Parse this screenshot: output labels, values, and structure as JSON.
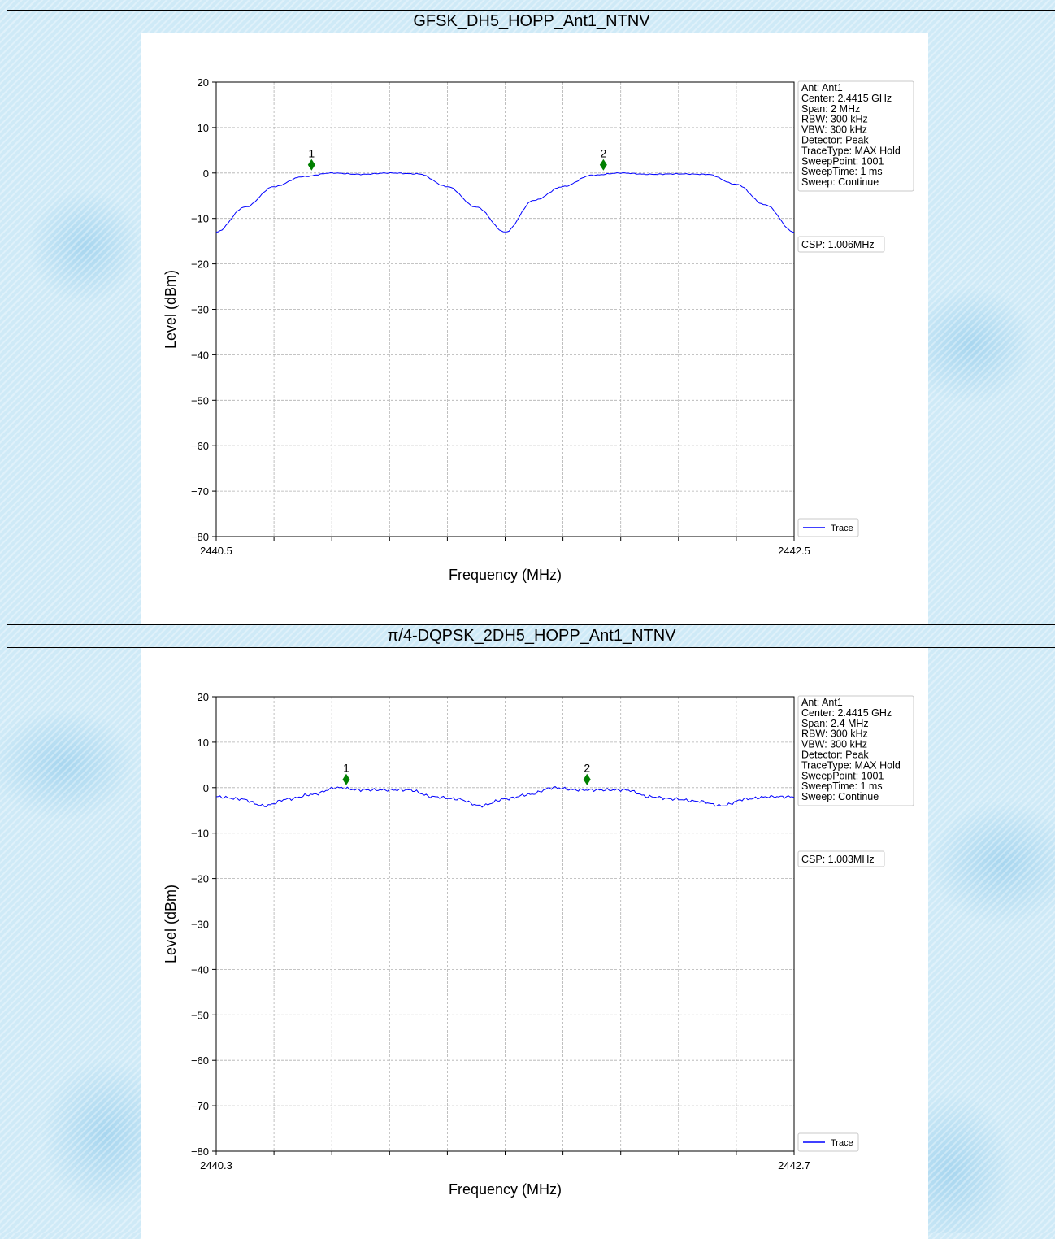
{
  "chart_data": [
    {
      "type": "line",
      "title": "GFSK_DH5_HOPP_Ant1_NTNV",
      "xlabel": "Frequency (MHz)",
      "ylabel": "Level (dBm)",
      "xlim": [
        2440.5,
        2442.5
      ],
      "ylim": [
        -80,
        20
      ],
      "x_tick_labels": [
        "2440.5",
        "2442.5"
      ],
      "y_ticks": [
        "20",
        "10",
        "0",
        "−10",
        "−20",
        "−30",
        "−40",
        "−50",
        "−60",
        "−70",
        "−80"
      ],
      "grid": true,
      "series": [
        {
          "name": "Trace",
          "x": [
            2440.5,
            2440.6,
            2440.7,
            2440.8,
            2440.9,
            2441.0,
            2441.1,
            2441.2,
            2441.3,
            2441.4,
            2441.5,
            2441.6,
            2441.7,
            2441.8,
            2441.9,
            2442.0,
            2442.1,
            2442.2,
            2442.3,
            2442.4,
            2442.5
          ],
          "values": [
            -13,
            -7.5,
            -3,
            -0.8,
            0,
            -0.3,
            0,
            -0.2,
            -3,
            -7.5,
            -13,
            -6,
            -3,
            -0.5,
            0,
            -0.3,
            -0.2,
            -0.3,
            -2.5,
            -7,
            -13
          ]
        }
      ],
      "markers": [
        {
          "label": "1",
          "x": 2440.83,
          "y": 1.8
        },
        {
          "label": "2",
          "x": 2441.84,
          "y": 1.8
        }
      ],
      "info_lines": [
        "Ant: Ant1",
        "Center: 2.4415 GHz",
        "Span: 2 MHz",
        "RBW: 300 kHz",
        "VBW: 300 kHz",
        "Detector: Peak",
        "TraceType: MAX Hold",
        "SweepPoint: 1001",
        "SweepTime: 1 ms",
        "Sweep: Continue"
      ],
      "csp_label": "CSP: 1.006MHz",
      "legend_label": "Trace",
      "legend_position": "bottom-right, outside plot",
      "trace_color": "#0000ff",
      "marker_color": "#008000"
    },
    {
      "type": "line",
      "title": "π/4-DQPSK_2DH5_HOPP_Ant1_NTNV",
      "xlabel": "Frequency (MHz)",
      "ylabel": "Level (dBm)",
      "xlim": [
        2440.3,
        2442.7
      ],
      "ylim": [
        -80,
        20
      ],
      "x_tick_labels": [
        "2440.3",
        "2442.7"
      ],
      "y_ticks": [
        "20",
        "10",
        "0",
        "−10",
        "−20",
        "−30",
        "−40",
        "−50",
        "−60",
        "−70",
        "−80"
      ],
      "grid": true,
      "series": [
        {
          "name": "Trace",
          "x": [
            2440.3,
            2440.4,
            2440.5,
            2440.6,
            2440.7,
            2440.8,
            2440.9,
            2441.0,
            2441.1,
            2441.2,
            2441.3,
            2441.4,
            2441.5,
            2441.6,
            2441.7,
            2441.8,
            2441.9,
            2442.0,
            2442.1,
            2442.2,
            2442.3,
            2442.4,
            2442.5,
            2442.6,
            2442.7
          ],
          "values": [
            -2,
            -2.5,
            -4,
            -2.5,
            -1.5,
            0,
            -0.5,
            -0.5,
            -0.5,
            -2,
            -2.5,
            -4,
            -2.5,
            -1.5,
            0,
            -0.5,
            -0.5,
            -0.5,
            -2,
            -2.5,
            -3,
            -4,
            -2.5,
            -2,
            -2
          ]
        }
      ],
      "markers": [
        {
          "label": "1",
          "x": 2440.84,
          "y": 1.8
        },
        {
          "label": "2",
          "x": 2441.84,
          "y": 1.8
        }
      ],
      "info_lines": [
        "Ant: Ant1",
        "Center: 2.4415 GHz",
        "Span: 2.4 MHz",
        "RBW: 300 kHz",
        "VBW: 300 kHz",
        "Detector: Peak",
        "TraceType: MAX Hold",
        "SweepPoint: 1001",
        "SweepTime: 1 ms",
        "Sweep: Continue"
      ],
      "csp_label": "CSP: 1.003MHz",
      "legend_label": "Trace",
      "legend_position": "bottom-right, outside plot",
      "trace_color": "#0000ff",
      "marker_color": "#008000"
    }
  ]
}
